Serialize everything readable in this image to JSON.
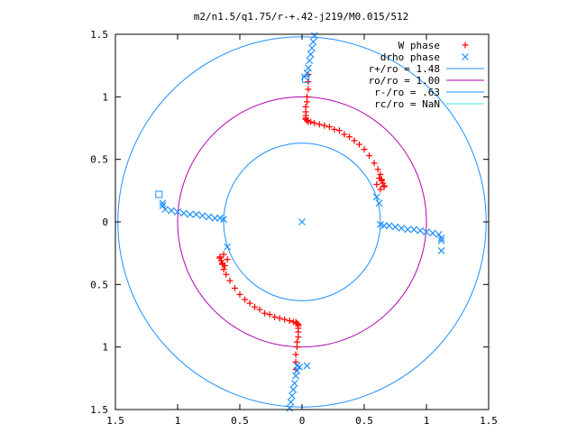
{
  "chart_data": {
    "type": "scatter",
    "title": "m2/n1.5/q1.75/r-+.42-j219/M0.015/512",
    "xlabel": "",
    "ylabel": "",
    "xlim": [
      -1.5,
      1.5
    ],
    "ylim": [
      -1.5,
      1.5
    ],
    "x_ticks": [
      -1.5,
      -1,
      -0.5,
      0,
      0.5,
      1,
      1.5
    ],
    "x_tick_labels": [
      "1.5",
      "1",
      "0.5",
      "0",
      "0.5",
      "1",
      "1.5"
    ],
    "y_ticks": [
      1.5,
      1,
      0.5,
      0,
      -0.5,
      -1,
      -1.5
    ],
    "y_tick_labels": [
      "1.5",
      "1",
      "0.5",
      "0",
      "0.5",
      "1",
      "1.5"
    ],
    "grid": false,
    "legend_position": "top-right",
    "series": [
      {
        "name": "W phase",
        "marker": "plus",
        "color": "#ff0000",
        "x": [
          0.05,
          0.05,
          0.05,
          0.04,
          0.04,
          0.03,
          0.03,
          0.03,
          0.03,
          0.03,
          0.04,
          0.05,
          0.07,
          0.1,
          0.14,
          0.18,
          0.22,
          0.26,
          0.3,
          0.34,
          0.38,
          0.42,
          0.46,
          0.5,
          0.54,
          0.58,
          0.61,
          0.63,
          0.64,
          0.65,
          0.66,
          0.64,
          0.62,
          0.6,
          0.63,
          0.66,
          -0.05,
          -0.05,
          -0.05,
          -0.04,
          -0.04,
          -0.03,
          -0.03,
          -0.03,
          -0.03,
          -0.03,
          -0.04,
          -0.05,
          -0.07,
          -0.1,
          -0.14,
          -0.18,
          -0.22,
          -0.26,
          -0.3,
          -0.34,
          -0.38,
          -0.42,
          -0.46,
          -0.5,
          -0.54,
          -0.58,
          -0.61,
          -0.63,
          -0.64,
          -0.65,
          -0.66,
          -0.64,
          -0.62,
          -0.6,
          -0.63,
          -0.66
        ],
        "y": [
          1.18,
          1.12,
          1.06,
          1.0,
          0.96,
          0.92,
          0.88,
          0.85,
          0.83,
          0.82,
          0.81,
          0.8,
          0.8,
          0.79,
          0.78,
          0.77,
          0.76,
          0.74,
          0.73,
          0.7,
          0.68,
          0.65,
          0.62,
          0.58,
          0.53,
          0.47,
          0.42,
          0.38,
          0.34,
          0.31,
          0.28,
          0.33,
          0.35,
          0.3,
          0.26,
          0.29,
          -1.18,
          -1.12,
          -1.06,
          -1.0,
          -0.96,
          -0.92,
          -0.88,
          -0.85,
          -0.83,
          -0.82,
          -0.81,
          -0.8,
          -0.8,
          -0.79,
          -0.78,
          -0.77,
          -0.76,
          -0.74,
          -0.73,
          -0.7,
          -0.68,
          -0.65,
          -0.62,
          -0.58,
          -0.53,
          -0.47,
          -0.42,
          -0.38,
          -0.34,
          -0.31,
          -0.28,
          -0.33,
          -0.35,
          -0.3,
          -0.26,
          -0.29
        ]
      },
      {
        "name": "drho phase",
        "marker": "cross",
        "color": "#1e90ff",
        "x": [
          0.1,
          0.09,
          0.08,
          0.07,
          0.06,
          0.05,
          0.04,
          0.02,
          0.63,
          0.66,
          0.7,
          0.75,
          0.8,
          0.85,
          0.9,
          0.95,
          1.0,
          1.05,
          1.1,
          1.12,
          1.12,
          1.12,
          0.6,
          0.62,
          -0.1,
          -0.09,
          -0.08,
          -0.07,
          -0.06,
          -0.05,
          -0.04,
          -0.02,
          -0.63,
          -0.66,
          -0.7,
          -0.75,
          -0.8,
          -0.85,
          -0.9,
          -0.95,
          -1.0,
          -1.05,
          -1.1,
          -1.12,
          -1.12,
          -0.6,
          0.04,
          -0.04,
          0.0
        ],
        "y": [
          1.49,
          1.44,
          1.39,
          1.34,
          1.29,
          1.23,
          1.19,
          1.16,
          -0.02,
          -0.03,
          -0.03,
          -0.04,
          -0.05,
          -0.06,
          -0.06,
          -0.07,
          -0.08,
          -0.09,
          -0.1,
          -0.13,
          -0.15,
          -0.23,
          0.2,
          0.15,
          -1.49,
          -1.44,
          -1.39,
          -1.34,
          -1.29,
          -1.23,
          -1.19,
          -1.16,
          0.02,
          0.03,
          0.03,
          0.04,
          0.05,
          0.06,
          0.06,
          0.07,
          0.08,
          0.09,
          0.1,
          0.13,
          0.15,
          -0.2,
          -1.15,
          -1.15,
          0.0
        ]
      },
      {
        "name": "r+/ro = 1.48",
        "marker": "circle",
        "color": "#1e90ff",
        "radius": 1.48
      },
      {
        "name": "ro/ro = 1.00",
        "marker": "circle",
        "color": "#b000b0",
        "radius": 1.0
      },
      {
        "name": "r-/ro = .63",
        "marker": "circle",
        "color": "#1e90ff",
        "radius": 0.63
      },
      {
        "name": "rc/ro = NaN",
        "marker": "line",
        "color": "#40e0d0"
      }
    ],
    "annotations": [
      {
        "type": "open-square",
        "color": "#1e90ff",
        "x": 0.03,
        "y": 1.14
      },
      {
        "type": "open-square",
        "color": "#1e90ff",
        "x": -1.15,
        "y": 0.22
      }
    ]
  }
}
